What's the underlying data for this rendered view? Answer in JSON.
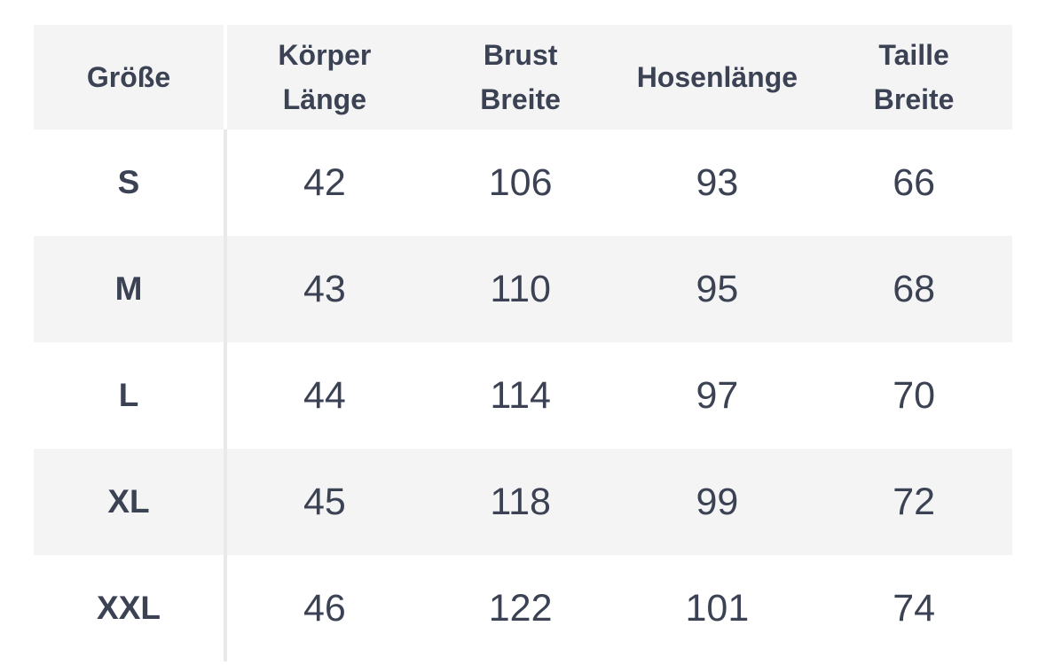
{
  "colors": {
    "text": "#3b4254",
    "header_bg": "#f4f4f4",
    "stripe_bg": "#f4f4f4",
    "divider": "#e9e9e9"
  },
  "header_display": {
    "lines": [
      [
        "Größe"
      ],
      [
        "Körper",
        "Länge"
      ],
      [
        "Brust",
        "Breite"
      ],
      [
        "Hosenlänge"
      ],
      [
        "Taille",
        "Breite"
      ]
    ]
  },
  "chart_data": {
    "type": "table",
    "columns": [
      "Größe",
      "Körper Länge",
      "Brust Breite",
      "Hosenlänge",
      "Taille Breite"
    ],
    "rows": [
      [
        "S",
        42,
        106,
        93,
        66
      ],
      [
        "M",
        43,
        110,
        95,
        68
      ],
      [
        "L",
        44,
        114,
        97,
        70
      ],
      [
        "XL",
        45,
        118,
        99,
        72
      ],
      [
        "XXL",
        46,
        122,
        101,
        74
      ]
    ],
    "layout": {
      "striped_rows": [
        "header",
        "M",
        "XL"
      ],
      "first_column_divider": true,
      "grid": "none",
      "value_alignment": "center"
    }
  }
}
